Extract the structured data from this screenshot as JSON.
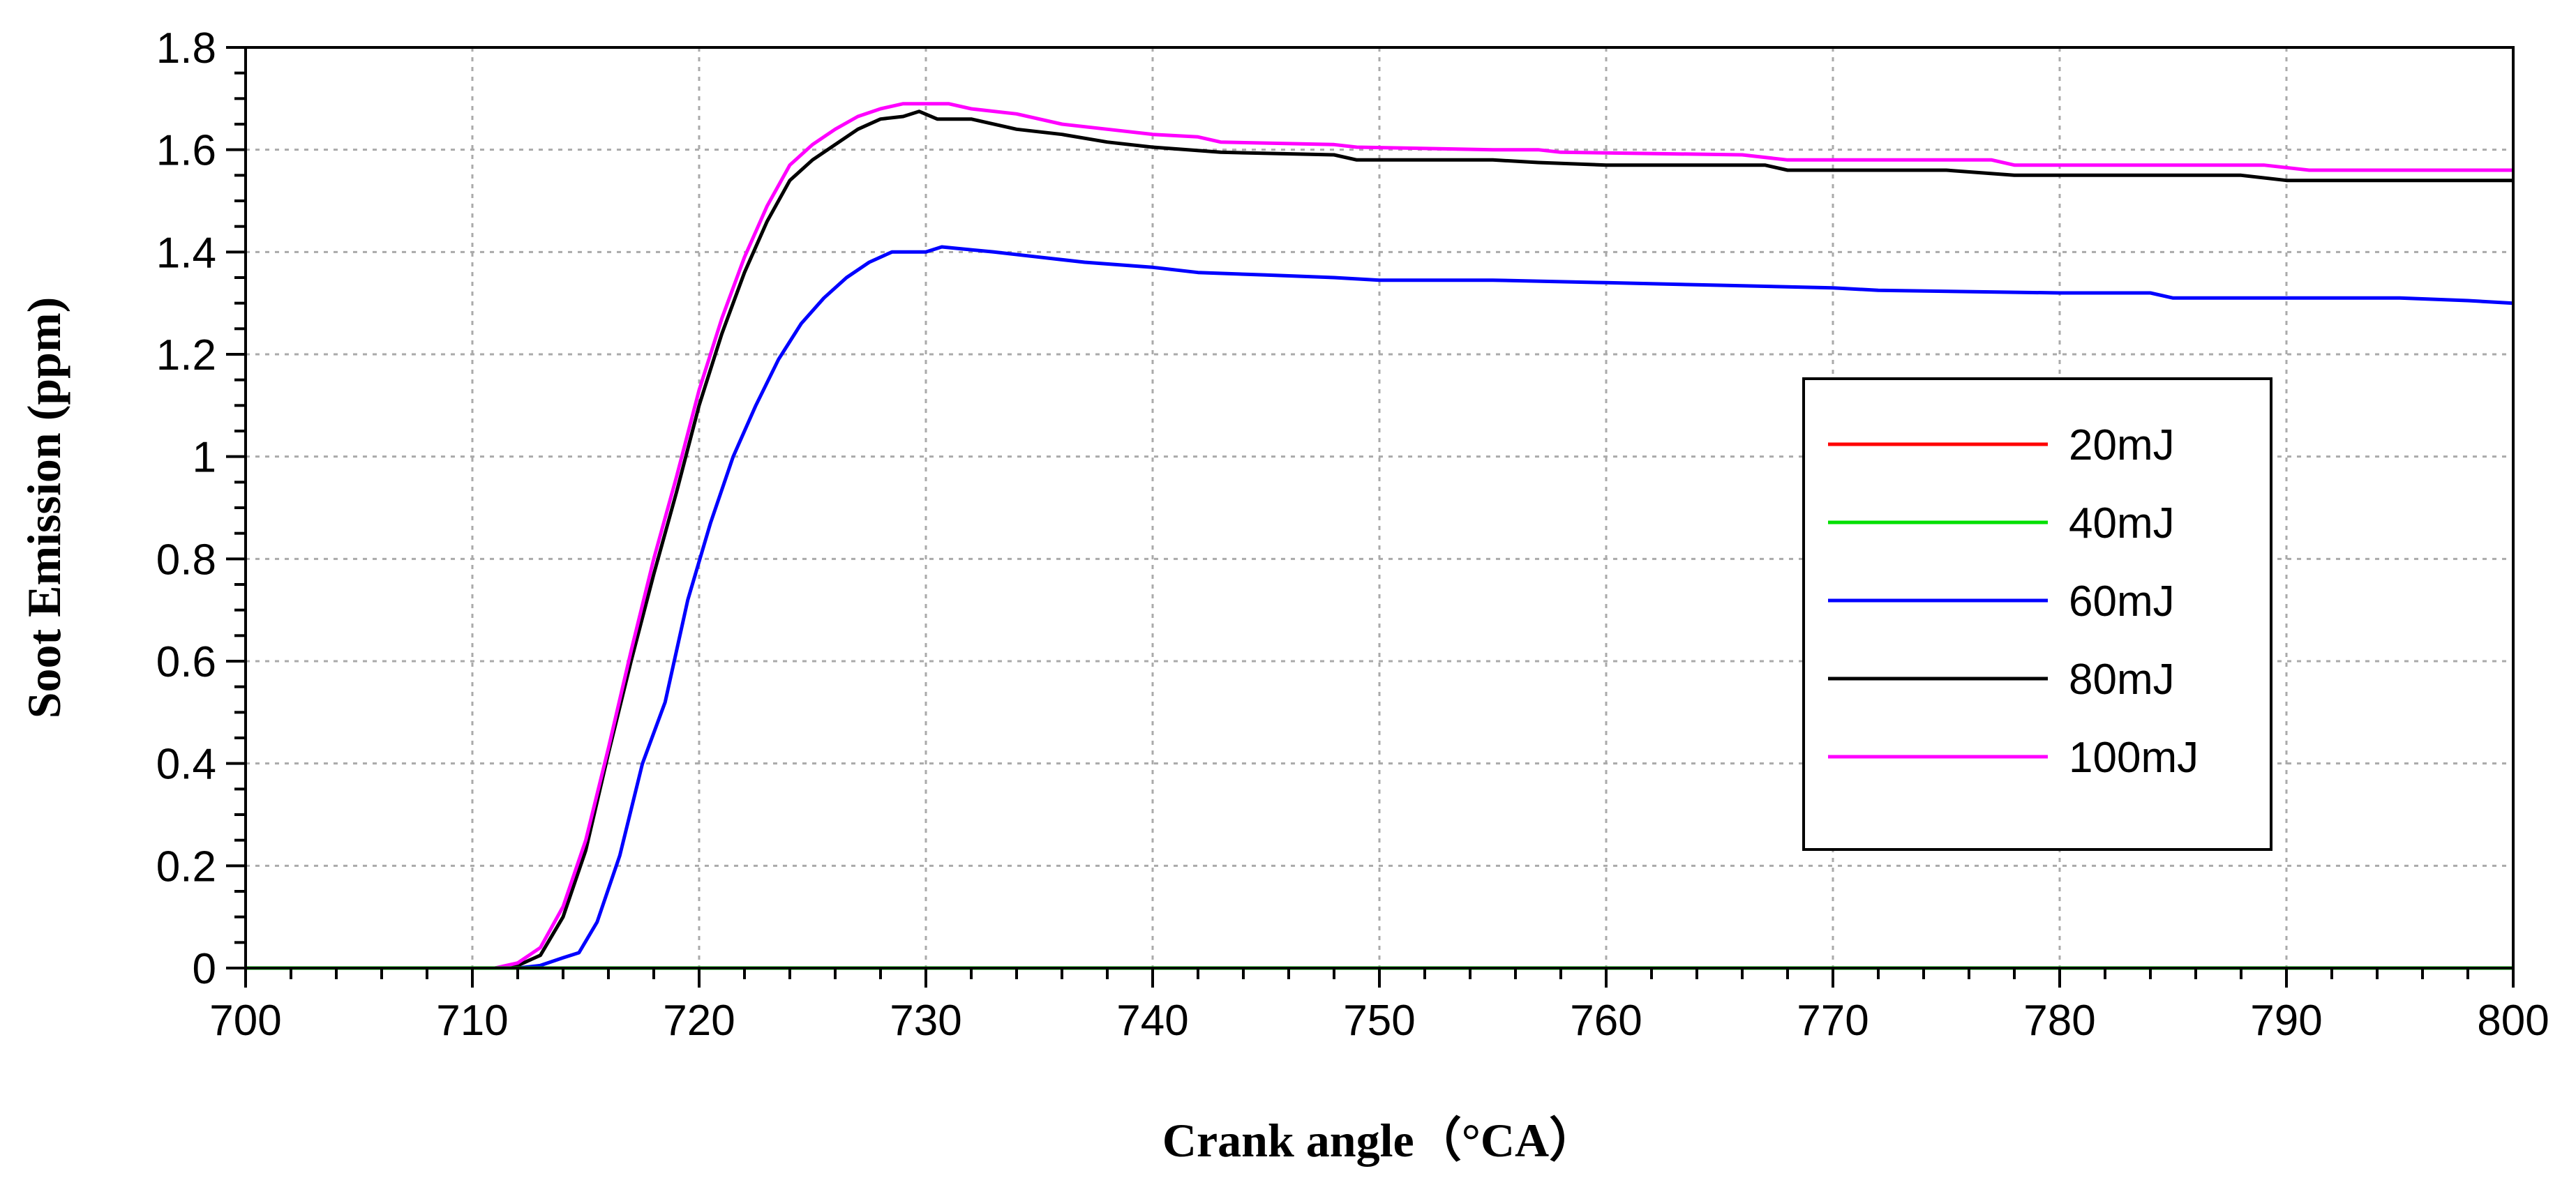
{
  "chart_data": {
    "type": "line",
    "title": "",
    "xlabel": "Crank angle（°CA）",
    "ylabel": "Soot Emission (ppm)",
    "xlim": [
      700,
      800
    ],
    "ylim": [
      0,
      1.8
    ],
    "x_ticks": [
      700,
      710,
      720,
      730,
      740,
      750,
      760,
      770,
      780,
      790,
      800
    ],
    "y_ticks": [
      0,
      0.2,
      0.4,
      0.6,
      0.8,
      1,
      1.2,
      1.4,
      1.6,
      1.8
    ],
    "x_tick_labels": [
      "700",
      "710",
      "720",
      "730",
      "740",
      "750",
      "760",
      "770",
      "780",
      "790",
      "800"
    ],
    "y_tick_labels": [
      "0",
      "0.2",
      "0.4",
      "0.6",
      "0.8",
      "1",
      "1.2",
      "1.4",
      "1.6",
      "1.8"
    ],
    "grid": true,
    "legend_position": "right-center",
    "series": [
      {
        "name": "20mJ",
        "color": "#ff0000",
        "points": [
          [
            700,
            0
          ],
          [
            800,
            0
          ]
        ]
      },
      {
        "name": "40mJ",
        "color": "#00e000",
        "points": [
          [
            700,
            0
          ],
          [
            800,
            0
          ]
        ]
      },
      {
        "name": "60mJ",
        "color": "#0000ff",
        "points": [
          [
            700,
            0
          ],
          [
            712,
            0
          ],
          [
            713,
            0.005
          ],
          [
            714,
            0.02
          ],
          [
            714.7,
            0.03
          ],
          [
            715.5,
            0.09
          ],
          [
            716.5,
            0.22
          ],
          [
            717.5,
            0.4
          ],
          [
            718.5,
            0.52
          ],
          [
            719.5,
            0.72
          ],
          [
            720.5,
            0.87
          ],
          [
            721.5,
            1.0
          ],
          [
            722.5,
            1.1
          ],
          [
            723.5,
            1.19
          ],
          [
            724.5,
            1.26
          ],
          [
            725.5,
            1.31
          ],
          [
            726.5,
            1.35
          ],
          [
            727.5,
            1.38
          ],
          [
            728.5,
            1.4
          ],
          [
            730,
            1.4
          ],
          [
            730.7,
            1.41
          ],
          [
            733,
            1.4
          ],
          [
            735,
            1.39
          ],
          [
            737,
            1.38
          ],
          [
            740,
            1.37
          ],
          [
            742,
            1.36
          ],
          [
            745,
            1.355
          ],
          [
            748,
            1.35
          ],
          [
            750,
            1.345
          ],
          [
            755,
            1.345
          ],
          [
            760,
            1.34
          ],
          [
            765,
            1.335
          ],
          [
            770,
            1.33
          ],
          [
            772,
            1.325
          ],
          [
            780,
            1.32
          ],
          [
            784,
            1.32
          ],
          [
            785,
            1.31
          ],
          [
            790,
            1.31
          ],
          [
            795,
            1.31
          ],
          [
            798,
            1.305
          ],
          [
            800,
            1.3
          ]
        ]
      },
      {
        "name": "80mJ",
        "color": "#000000",
        "points": [
          [
            700,
            0
          ],
          [
            711,
            0
          ],
          [
            712,
            0.005
          ],
          [
            713,
            0.025
          ],
          [
            714,
            0.1
          ],
          [
            715,
            0.23
          ],
          [
            716,
            0.42
          ],
          [
            717,
            0.6
          ],
          [
            718,
            0.77
          ],
          [
            719,
            0.93
          ],
          [
            720,
            1.1
          ],
          [
            721,
            1.24
          ],
          [
            722,
            1.36
          ],
          [
            723,
            1.46
          ],
          [
            724,
            1.54
          ],
          [
            725,
            1.58
          ],
          [
            726,
            1.61
          ],
          [
            727,
            1.64
          ],
          [
            728,
            1.66
          ],
          [
            729,
            1.665
          ],
          [
            729.7,
            1.675
          ],
          [
            730.5,
            1.66
          ],
          [
            732,
            1.66
          ],
          [
            734,
            1.64
          ],
          [
            736,
            1.63
          ],
          [
            738,
            1.615
          ],
          [
            740,
            1.605
          ],
          [
            743,
            1.595
          ],
          [
            748,
            1.59
          ],
          [
            749,
            1.58
          ],
          [
            755,
            1.58
          ],
          [
            757,
            1.575
          ],
          [
            760,
            1.57
          ],
          [
            767,
            1.57
          ],
          [
            768,
            1.56
          ],
          [
            775,
            1.56
          ],
          [
            778,
            1.55
          ],
          [
            788,
            1.55
          ],
          [
            790,
            1.54
          ],
          [
            800,
            1.54
          ]
        ]
      },
      {
        "name": "100mJ",
        "color": "#ff00ff",
        "points": [
          [
            700,
            0
          ],
          [
            711,
            0
          ],
          [
            712,
            0.01
          ],
          [
            713,
            0.04
          ],
          [
            714,
            0.12
          ],
          [
            715,
            0.25
          ],
          [
            716,
            0.43
          ],
          [
            717,
            0.62
          ],
          [
            718,
            0.8
          ],
          [
            719,
            0.96
          ],
          [
            720,
            1.13
          ],
          [
            721,
            1.27
          ],
          [
            722,
            1.39
          ],
          [
            723,
            1.49
          ],
          [
            724,
            1.57
          ],
          [
            725,
            1.61
          ],
          [
            726,
            1.64
          ],
          [
            727,
            1.665
          ],
          [
            728,
            1.68
          ],
          [
            729,
            1.69
          ],
          [
            731,
            1.69
          ],
          [
            732,
            1.68
          ],
          [
            734,
            1.67
          ],
          [
            736,
            1.65
          ],
          [
            738,
            1.64
          ],
          [
            740,
            1.63
          ],
          [
            742,
            1.625
          ],
          [
            743,
            1.615
          ],
          [
            748,
            1.61
          ],
          [
            749,
            1.605
          ],
          [
            755,
            1.6
          ],
          [
            757,
            1.6
          ],
          [
            758,
            1.595
          ],
          [
            766,
            1.59
          ],
          [
            768,
            1.58
          ],
          [
            777,
            1.58
          ],
          [
            778,
            1.57
          ],
          [
            789,
            1.57
          ],
          [
            791,
            1.56
          ],
          [
            800,
            1.56
          ]
        ]
      }
    ]
  }
}
